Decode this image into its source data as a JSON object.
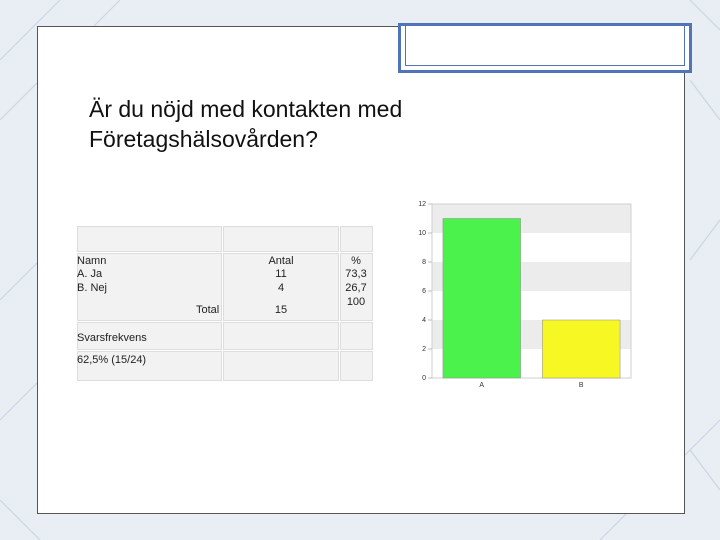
{
  "slide": {
    "title_line1": "Är du nöjd med kontakten med",
    "title_line2": "Företagshälsovården?"
  },
  "table": {
    "headers": {
      "namn": "Namn",
      "antal": "Antal",
      "percent": "%"
    },
    "rows": [
      {
        "label": "A. Ja",
        "antal": "11",
        "percent": "73,3"
      },
      {
        "label": "B. Nej",
        "antal": "4",
        "percent": "26,7"
      }
    ],
    "total": {
      "label": "Total",
      "antal": "15",
      "percent": "100"
    },
    "response_rate_label": "Svarsfrekvens",
    "response_rate_value": "62,5% (15/24)"
  },
  "chart_data": {
    "type": "bar",
    "categories": [
      "A",
      "B"
    ],
    "values": [
      11,
      4
    ],
    "colors": [
      "#4cf24c",
      "#f7f723"
    ],
    "ylim": [
      0,
      12
    ],
    "yticks": [
      "0",
      "2",
      "4",
      "6",
      "8",
      "10",
      "12"
    ],
    "grid": true
  },
  "colors": {
    "frame_accent": "#4f74b8",
    "table_cell": "#f2f2f2"
  }
}
